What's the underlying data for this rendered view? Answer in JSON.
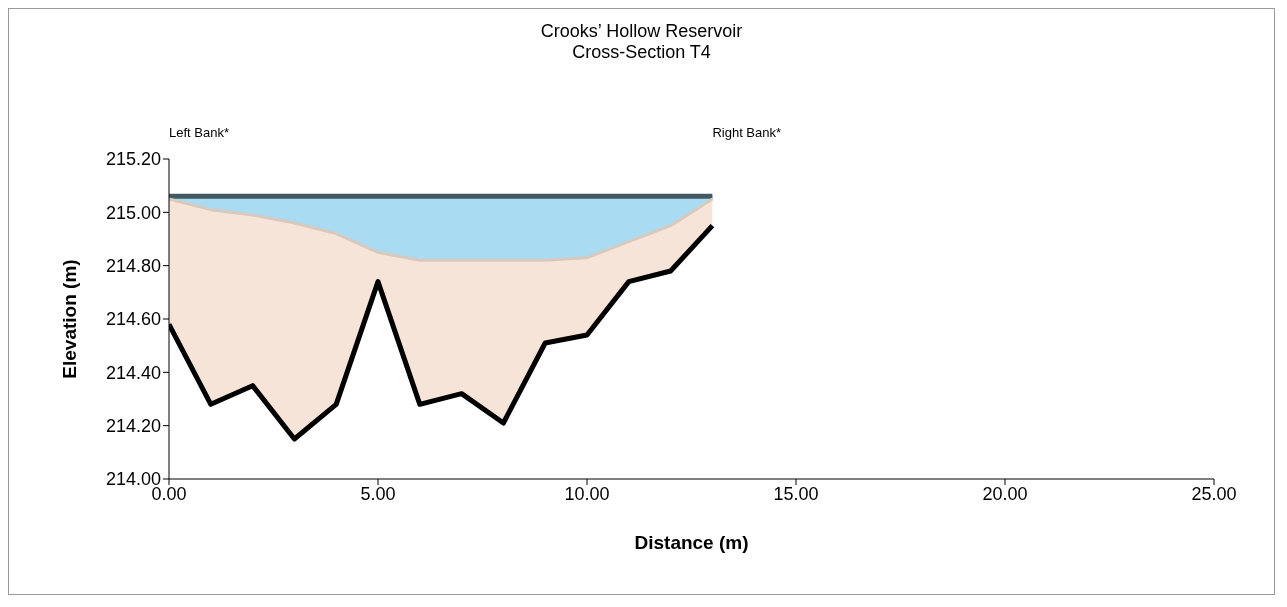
{
  "chart_data": {
    "type": "area",
    "title": "Crooks’ Hollow Reservoir",
    "subtitle": "Cross-Section T4",
    "xlabel": "Distance (m)",
    "ylabel": "Elevation (m)",
    "annotations": [
      "Left Bank*",
      "Right Bank*"
    ],
    "x": [
      0,
      1,
      2,
      3,
      4,
      5,
      6,
      7,
      8,
      9,
      10,
      11,
      12,
      13
    ],
    "series": [
      {
        "color": "#a9dcf2",
        "values": [
          215.06,
          215.06,
          215.06,
          215.06,
          215.06,
          215.06,
          215.06,
          215.06,
          215.06,
          215.06,
          215.06,
          215.06,
          215.06,
          215.06
        ]
      },
      {
        "color": "#f6e4d8",
        "values": [
          215.05,
          215.01,
          214.99,
          214.96,
          214.92,
          214.85,
          214.82,
          214.82,
          214.82,
          214.82,
          214.83,
          214.89,
          214.95,
          215.05
        ]
      },
      {
        "type": "line",
        "color": "#000000",
        "values": [
          214.58,
          214.28,
          214.35,
          214.15,
          214.28,
          214.74,
          214.28,
          214.32,
          214.21,
          214.51,
          214.54,
          214.74,
          214.78,
          214.95
        ]
      }
    ],
    "xlim": [
      0,
      25
    ],
    "xticks": [
      {
        "value": 0,
        "label": "0.00"
      },
      {
        "value": 5,
        "label": "5.00"
      },
      {
        "value": 10,
        "label": "10.00"
      },
      {
        "value": 15,
        "label": "15.00"
      },
      {
        "value": 20,
        "label": "20.00"
      },
      {
        "value": 25,
        "label": "25.00"
      }
    ],
    "ylim": [
      214,
      215.2
    ],
    "yticks": [
      {
        "value": 214,
        "label": "214.00"
      },
      {
        "value": 214.2,
        "label": "214.20"
      },
      {
        "value": 214.4,
        "label": "214.40"
      },
      {
        "value": 214.6,
        "label": "214.60"
      },
      {
        "value": 214.8,
        "label": "214.80"
      },
      {
        "value": 215,
        "label": "215.00"
      },
      {
        "value": 215.2,
        "label": "215.20"
      }
    ]
  }
}
